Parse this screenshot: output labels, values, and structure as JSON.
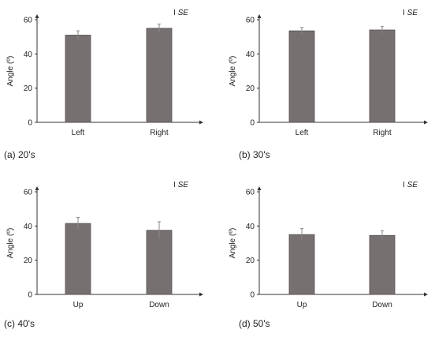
{
  "colors": {
    "bar": "#777070",
    "bar_stroke": "#555050",
    "axis": "#333333",
    "error": "#888888"
  },
  "chart_data": [
    {
      "type": "bar",
      "caption": "(a) 20's",
      "ylabel": "Angle (º)",
      "legend": {
        "marker": "I",
        "text": "SE"
      },
      "categories": [
        "Left",
        "Right"
      ],
      "values": [
        51,
        55
      ],
      "errors": [
        2.5,
        2.5
      ],
      "yticks": [
        0,
        20,
        40,
        60
      ],
      "ylim": [
        0,
        60
      ]
    },
    {
      "type": "bar",
      "caption": "(b) 30's",
      "ylabel": "Angle (º)",
      "legend": {
        "marker": "I",
        "text": "SE"
      },
      "categories": [
        "Left",
        "Right"
      ],
      "values": [
        53.5,
        54
      ],
      "errors": [
        2,
        2
      ],
      "yticks": [
        0,
        20,
        40,
        60
      ],
      "ylim": [
        0,
        60
      ]
    },
    {
      "type": "bar",
      "caption": "(c) 40's",
      "ylabel": "Angle (º)",
      "legend": {
        "marker": "I",
        "text": "SE"
      },
      "categories": [
        "Up",
        "Down"
      ],
      "values": [
        41.5,
        37.5
      ],
      "errors": [
        3.5,
        5
      ],
      "yticks": [
        0,
        20,
        40,
        60
      ],
      "ylim": [
        0,
        60
      ]
    },
    {
      "type": "bar",
      "caption": "(d) 50's",
      "ylabel": "Angle (º)",
      "legend": {
        "marker": "I",
        "text": "SE"
      },
      "categories": [
        "Up",
        "Down"
      ],
      "values": [
        35,
        34.5
      ],
      "errors": [
        3.5,
        2.8
      ],
      "yticks": [
        0,
        20,
        40,
        60
      ],
      "ylim": [
        0,
        60
      ]
    }
  ]
}
